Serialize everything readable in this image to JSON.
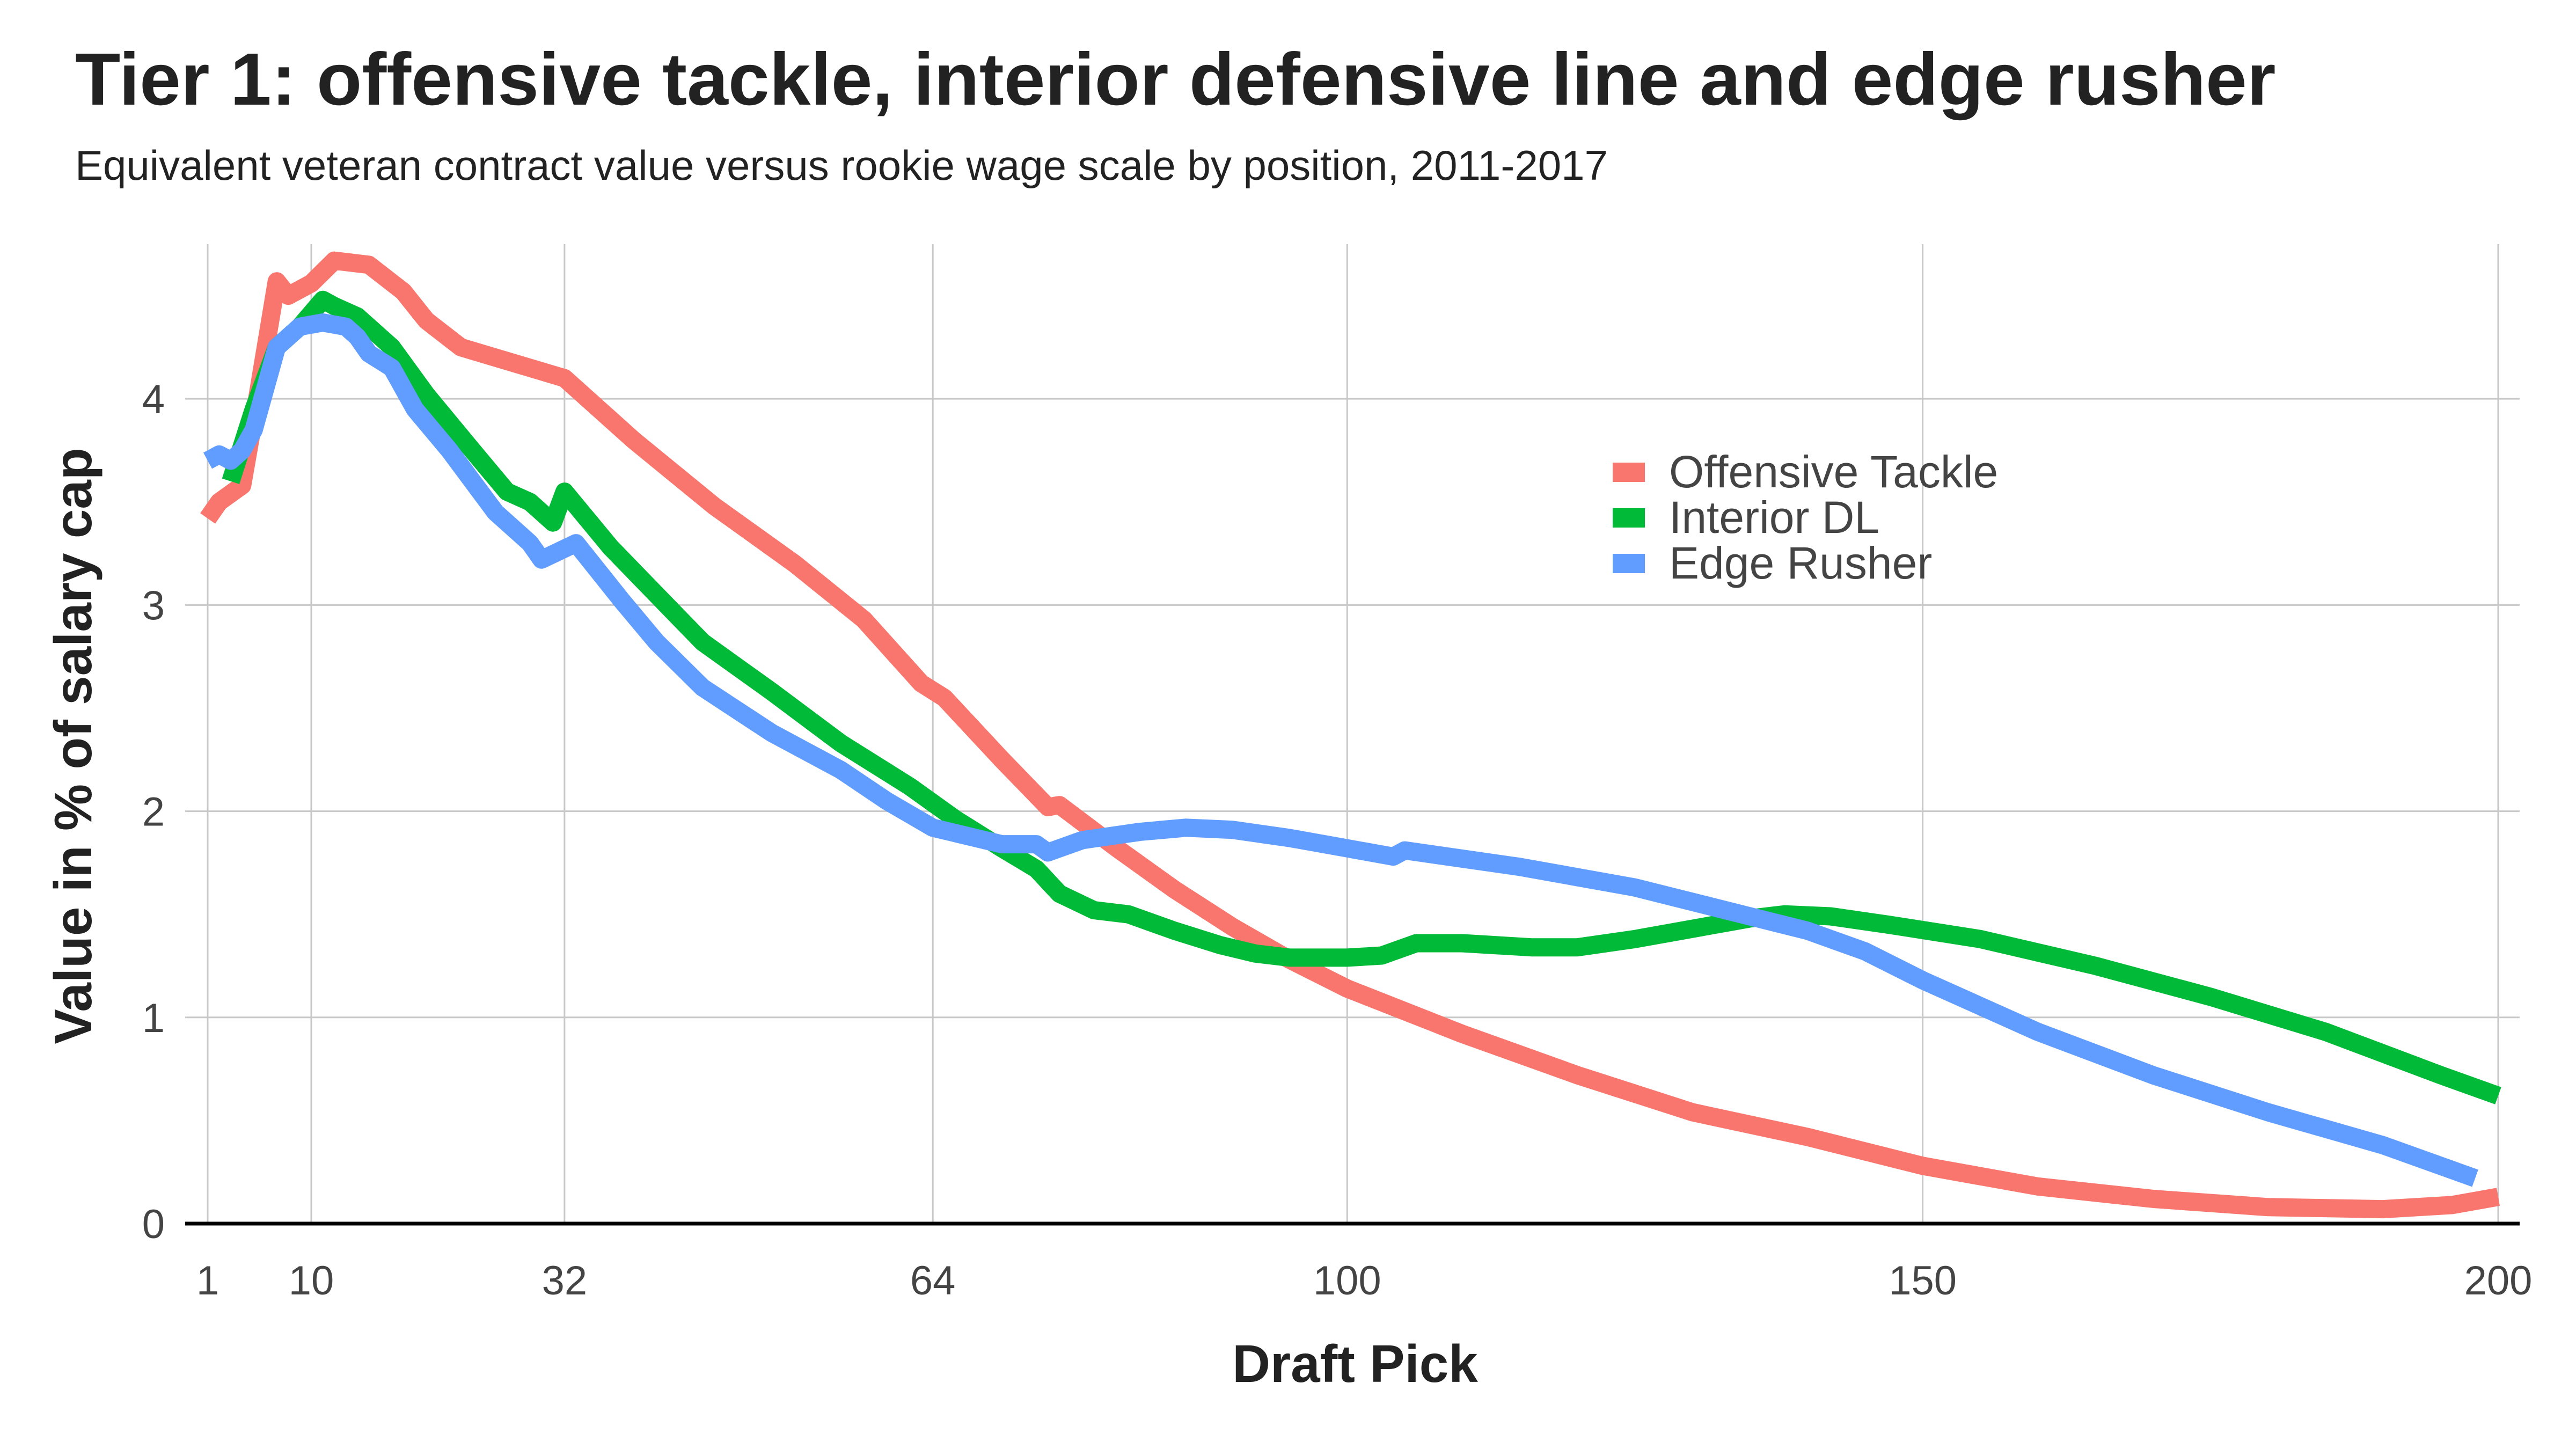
{
  "chart_data": {
    "type": "line",
    "title": "Tier 1: offensive tackle, interior defensive line and edge rusher",
    "subtitle": "Equivalent veteran contract value versus rookie wage scale by position, 2011-2017",
    "xlabel": "Draft Pick",
    "ylabel": "Value in % of salary cap",
    "xlim": [
      1,
      200
    ],
    "ylim": [
      0,
      4.75
    ],
    "x_ticks": [
      1,
      10,
      32,
      64,
      100,
      150,
      200
    ],
    "y_ticks": [
      0,
      1,
      2,
      3,
      4
    ],
    "grid": true,
    "legend_position": "top-right",
    "series": [
      {
        "name": "Offensive Tackle",
        "color": "#F8766D",
        "points": [
          [
            1,
            3.42
          ],
          [
            2,
            3.5
          ],
          [
            4,
            3.58
          ],
          [
            5,
            3.9
          ],
          [
            7,
            4.57
          ],
          [
            8,
            4.5
          ],
          [
            10,
            4.56
          ],
          [
            12,
            4.67
          ],
          [
            15,
            4.65
          ],
          [
            18,
            4.52
          ],
          [
            20,
            4.38
          ],
          [
            23,
            4.25
          ],
          [
            32,
            4.1
          ],
          [
            38,
            3.8
          ],
          [
            45,
            3.48
          ],
          [
            52,
            3.2
          ],
          [
            58,
            2.93
          ],
          [
            63,
            2.62
          ],
          [
            65,
            2.55
          ],
          [
            70,
            2.25
          ],
          [
            74,
            2.02
          ],
          [
            75,
            2.03
          ],
          [
            80,
            1.82
          ],
          [
            85,
            1.62
          ],
          [
            90,
            1.44
          ],
          [
            95,
            1.28
          ],
          [
            100,
            1.14
          ],
          [
            110,
            0.92
          ],
          [
            120,
            0.72
          ],
          [
            130,
            0.54
          ],
          [
            140,
            0.42
          ],
          [
            150,
            0.28
          ],
          [
            160,
            0.18
          ],
          [
            170,
            0.12
          ],
          [
            180,
            0.08
          ],
          [
            190,
            0.07
          ],
          [
            196,
            0.09
          ],
          [
            200,
            0.13
          ]
        ]
      },
      {
        "name": "Interior DL",
        "color": "#00BA38",
        "points": [
          [
            3,
            3.6
          ],
          [
            5,
            3.95
          ],
          [
            7,
            4.25
          ],
          [
            9,
            4.35
          ],
          [
            11,
            4.48
          ],
          [
            12,
            4.45
          ],
          [
            14,
            4.4
          ],
          [
            17,
            4.25
          ],
          [
            20,
            4.02
          ],
          [
            24,
            3.75
          ],
          [
            27,
            3.55
          ],
          [
            29,
            3.5
          ],
          [
            31,
            3.4
          ],
          [
            32,
            3.55
          ],
          [
            36,
            3.28
          ],
          [
            40,
            3.05
          ],
          [
            44,
            2.82
          ],
          [
            50,
            2.58
          ],
          [
            56,
            2.33
          ],
          [
            62,
            2.12
          ],
          [
            66,
            1.96
          ],
          [
            70,
            1.82
          ],
          [
            73,
            1.72
          ],
          [
            75,
            1.6
          ],
          [
            78,
            1.52
          ],
          [
            81,
            1.5
          ],
          [
            85,
            1.42
          ],
          [
            89,
            1.35
          ],
          [
            92,
            1.31
          ],
          [
            95,
            1.29
          ],
          [
            100,
            1.29
          ],
          [
            103,
            1.3
          ],
          [
            106,
            1.36
          ],
          [
            110,
            1.36
          ],
          [
            116,
            1.34
          ],
          [
            120,
            1.34
          ],
          [
            125,
            1.38
          ],
          [
            130,
            1.43
          ],
          [
            135,
            1.48
          ],
          [
            138,
            1.5
          ],
          [
            142,
            1.49
          ],
          [
            147,
            1.45
          ],
          [
            155,
            1.38
          ],
          [
            165,
            1.25
          ],
          [
            175,
            1.1
          ],
          [
            185,
            0.93
          ],
          [
            195,
            0.72
          ],
          [
            200,
            0.62
          ]
        ]
      },
      {
        "name": "Edge Rusher",
        "color": "#619CFF",
        "points": [
          [
            1,
            3.7
          ],
          [
            2,
            3.73
          ],
          [
            3,
            3.7
          ],
          [
            4,
            3.75
          ],
          [
            5,
            3.85
          ],
          [
            7,
            4.25
          ],
          [
            9,
            4.35
          ],
          [
            11,
            4.37
          ],
          [
            13,
            4.35
          ],
          [
            14,
            4.3
          ],
          [
            15,
            4.22
          ],
          [
            17,
            4.15
          ],
          [
            19,
            3.95
          ],
          [
            22,
            3.75
          ],
          [
            26,
            3.45
          ],
          [
            29,
            3.3
          ],
          [
            30,
            3.22
          ],
          [
            33,
            3.3
          ],
          [
            37,
            3.02
          ],
          [
            40,
            2.82
          ],
          [
            44,
            2.6
          ],
          [
            50,
            2.38
          ],
          [
            56,
            2.2
          ],
          [
            60,
            2.05
          ],
          [
            64,
            1.92
          ],
          [
            67,
            1.88
          ],
          [
            70,
            1.84
          ],
          [
            73,
            1.84
          ],
          [
            74,
            1.8
          ],
          [
            77,
            1.86
          ],
          [
            82,
            1.9
          ],
          [
            86,
            1.92
          ],
          [
            90,
            1.91
          ],
          [
            95,
            1.87
          ],
          [
            100,
            1.82
          ],
          [
            104,
            1.78
          ],
          [
            105,
            1.81
          ],
          [
            115,
            1.73
          ],
          [
            125,
            1.63
          ],
          [
            135,
            1.49
          ],
          [
            140,
            1.42
          ],
          [
            145,
            1.32
          ],
          [
            150,
            1.18
          ],
          [
            160,
            0.93
          ],
          [
            170,
            0.72
          ],
          [
            180,
            0.54
          ],
          [
            190,
            0.38
          ],
          [
            198,
            0.22
          ]
        ]
      }
    ]
  }
}
